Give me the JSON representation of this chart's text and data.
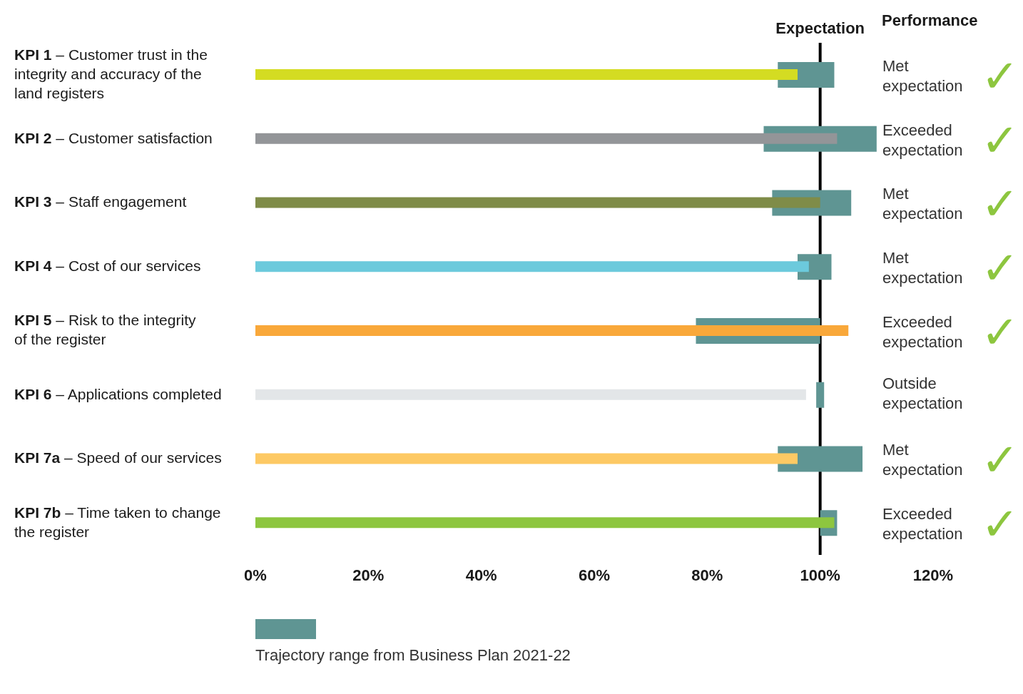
{
  "chart_data": {
    "type": "bar",
    "orientation": "horizontal",
    "categories": [
      "KPI 1 – Customer trust in the integrity and accuracy of the land registers",
      "KPI 2 – Customer satisfaction",
      "KPI 3 – Staff engagement",
      "KPI 4 – Cost of our services",
      "KPI 5 – Risk to the integrity of the register",
      "KPI 6 – Applications completed",
      "KPI 7a – Speed of our services",
      "KPI 7b – Time taken to change the register"
    ],
    "series": [
      {
        "name": "Trajectory range from Business Plan 2021-22",
        "color": "#5f9593",
        "base": [
          92.5,
          90,
          91.5,
          96,
          78,
          99.3,
          92.5,
          100
        ],
        "values": [
          10,
          20,
          14,
          6,
          22,
          1.4,
          15,
          3
        ]
      },
      {
        "colors": [
          "#d4dc22",
          "#939598",
          "#7f8c48",
          "#6ccadc",
          "#f9a83a",
          "#e3e6e8",
          "#fdc964",
          "#8dc63f"
        ],
        "values": [
          96,
          103,
          100,
          98,
          105,
          97.5,
          96,
          102.5
        ]
      }
    ],
    "xlim": [
      0,
      120
    ],
    "xticks": [
      {
        "value": 0,
        "label": "0%"
      },
      {
        "value": 20,
        "label": "20%"
      },
      {
        "value": 40,
        "label": "40%"
      },
      {
        "value": 60,
        "label": "60%"
      },
      {
        "value": 80,
        "label": "80%"
      },
      {
        "value": 100,
        "label": "100%"
      },
      {
        "value": 120,
        "label": "120%"
      }
    ],
    "ref_lines": [
      {
        "axis": "x",
        "value": 100,
        "label": "Expectation",
        "color": "#000000"
      }
    ],
    "annotations": [
      "Performance",
      "Met expectation ✓",
      "Exceeded expectation ✓",
      "Met expectation ✓",
      "Met expectation ✓",
      "Exceeded expectation ✓",
      "Outside expectation",
      "Met expectation ✓",
      "Exceeded expectation ✓"
    ],
    "legend": "bottom",
    "grid": false
  }
}
